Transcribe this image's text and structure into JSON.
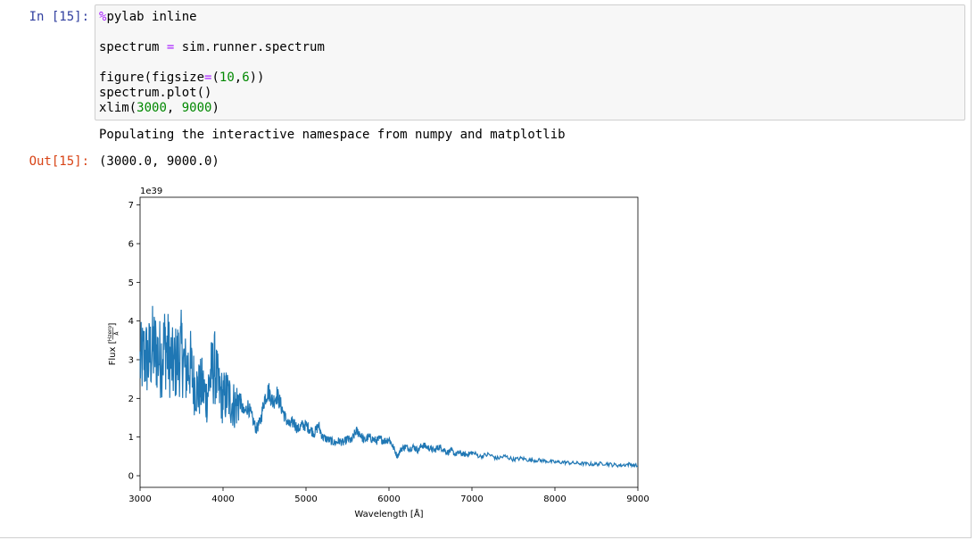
{
  "cell": {
    "in_prompt": "In [15]:",
    "out_prompt": "Out[15]:",
    "code": {
      "magic_symbol": "%",
      "magic_cmd": "pylab inline",
      "line2_lhs": "spectrum ",
      "line2_eq": "=",
      "line2_rhs": " sim.runner.spectrum",
      "line3_a": "figure(figsize",
      "line3_eq": "=",
      "line3_b": "(",
      "line3_n1": "10",
      "line3_c": ",",
      "line3_n2": "6",
      "line3_d": "))",
      "line4": "spectrum.plot()",
      "line5_a": "xlim(",
      "line5_n1": "3000",
      "line5_b": ", ",
      "line5_n2": "9000",
      "line5_c": ")"
    },
    "stream_output": "Populating the interactive namespace from numpy and matplotlib",
    "result_output": "(3000.0, 9000.0)"
  },
  "colors": {
    "prompt_in": "#303f9f",
    "prompt_out": "#d84315",
    "line": "#1f77b4",
    "input_bg": "#f7f7f7"
  },
  "chart_data": {
    "type": "line",
    "xlabel": "Wavelength [Å]",
    "ylabel_prefix": "Flux [",
    "ylabel_num": "Hzero",
    "ylabel_den": "Å",
    "ylabel_suffix": "]",
    "offset_text": "1e39",
    "xlim": [
      3000,
      9000
    ],
    "ylim": [
      -0.3,
      7.2
    ],
    "xticks": [
      "3000",
      "4000",
      "5000",
      "6000",
      "7000",
      "8000",
      "9000"
    ],
    "yticks": [
      "0",
      "1",
      "2",
      "3",
      "4",
      "5",
      "6",
      "7"
    ],
    "series": [
      {
        "x": [
          3000,
          3050,
          3100,
          3150,
          3200,
          3250,
          3300,
          3350,
          3400,
          3450,
          3500,
          3550,
          3600,
          3650,
          3700,
          3750,
          3800,
          3850,
          3900,
          3950,
          4000,
          4050,
          4100,
          4150,
          4200,
          4250,
          4300,
          4350,
          4400,
          4450,
          4500,
          4550,
          4600,
          4650,
          4700,
          4750,
          4800,
          4850,
          4900,
          4950,
          5000,
          5050,
          5100,
          5150,
          5200,
          5250,
          5300,
          5350,
          5400,
          5450,
          5500,
          5550,
          5600,
          5650,
          5700,
          5750,
          5800,
          5850,
          5900,
          5950,
          6000,
          6050,
          6100,
          6150,
          6200,
          6250,
          6300,
          6350,
          6400,
          6450,
          6500,
          6550,
          6600,
          6650,
          6700,
          6750,
          6800,
          6850,
          6900,
          6950,
          7000,
          7100,
          7200,
          7300,
          7400,
          7500,
          7600,
          7700,
          7800,
          7900,
          8000,
          8100,
          8200,
          8300,
          8400,
          8500,
          8600,
          8700,
          8800,
          8900,
          9000
        ],
        "y": [
          2.9,
          3.1,
          3.0,
          3.3,
          3.2,
          3.0,
          3.4,
          3.1,
          2.8,
          3.0,
          3.2,
          2.7,
          2.9,
          2.4,
          2.2,
          2.3,
          2.0,
          2.6,
          2.8,
          2.2,
          2.0,
          2.1,
          1.9,
          1.8,
          2.0,
          1.6,
          1.8,
          1.5,
          1.2,
          1.4,
          2.0,
          2.2,
          1.9,
          2.1,
          1.8,
          1.5,
          1.3,
          1.4,
          1.2,
          1.3,
          1.3,
          1.2,
          1.1,
          1.3,
          1.0,
          0.95,
          0.9,
          0.85,
          0.9,
          0.85,
          0.95,
          0.9,
          1.15,
          1.1,
          0.9,
          1.0,
          0.95,
          0.9,
          0.95,
          0.9,
          0.95,
          0.75,
          0.5,
          0.7,
          0.75,
          0.7,
          0.75,
          0.65,
          0.8,
          0.75,
          0.7,
          0.65,
          0.75,
          0.7,
          0.6,
          0.65,
          0.55,
          0.6,
          0.55,
          0.55,
          0.6,
          0.5,
          0.55,
          0.45,
          0.5,
          0.42,
          0.45,
          0.4,
          0.4,
          0.38,
          0.35,
          0.35,
          0.33,
          0.32,
          0.3,
          0.3,
          0.32,
          0.28,
          0.27,
          0.3,
          0.25
        ]
      }
    ]
  }
}
